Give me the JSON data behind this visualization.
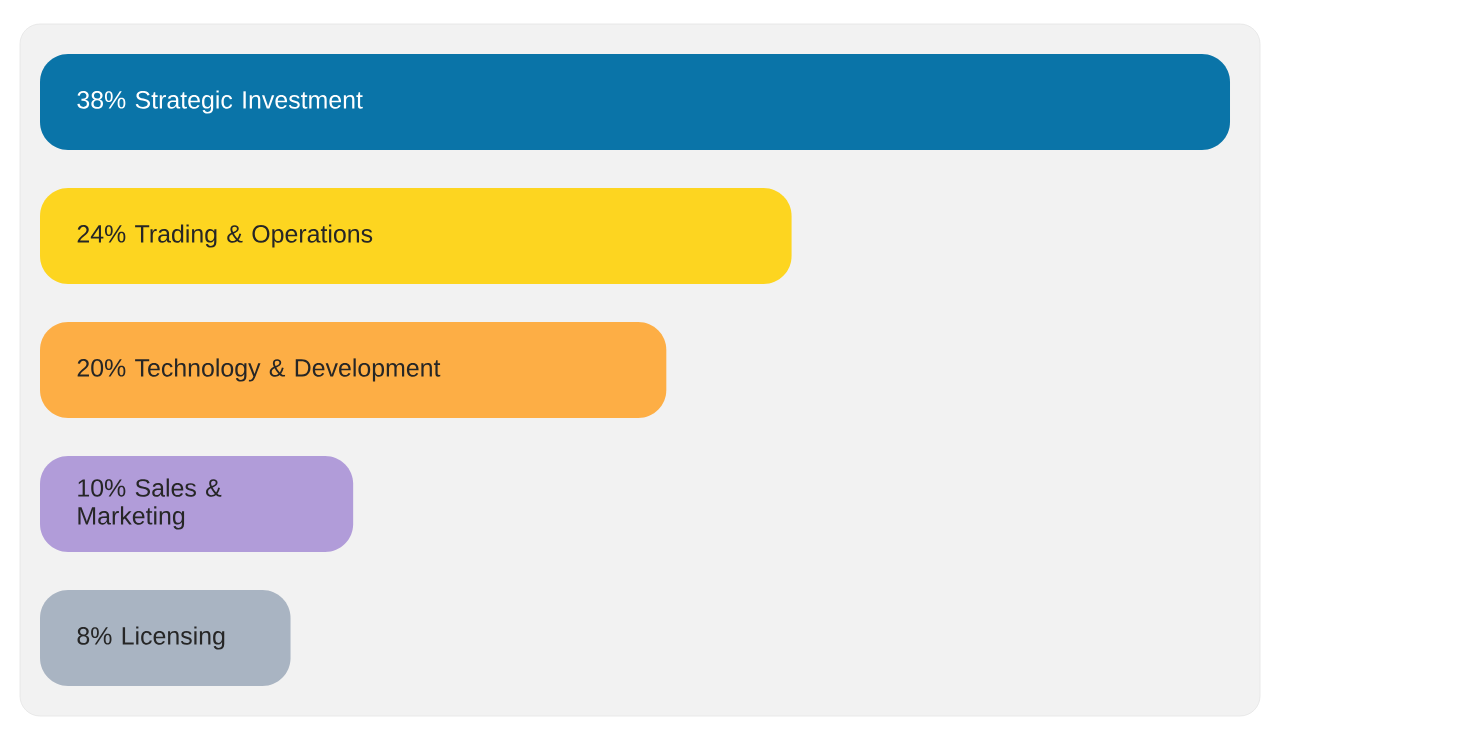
{
  "chart_data": {
    "type": "bar",
    "orientation": "horizontal",
    "categories": [
      "Strategic Investment",
      "Trading & Operations",
      "Technology & Development",
      "Sales & Marketing",
      "Licensing"
    ],
    "values": [
      38,
      24,
      20,
      10,
      8
    ],
    "value_labels": [
      "38%",
      "24%",
      "20%",
      "10%",
      "8%"
    ],
    "colors": [
      "#0a74a8",
      "#fdd520",
      "#fdae45",
      "#b19cd9",
      "#a9b4c2"
    ]
  }
}
